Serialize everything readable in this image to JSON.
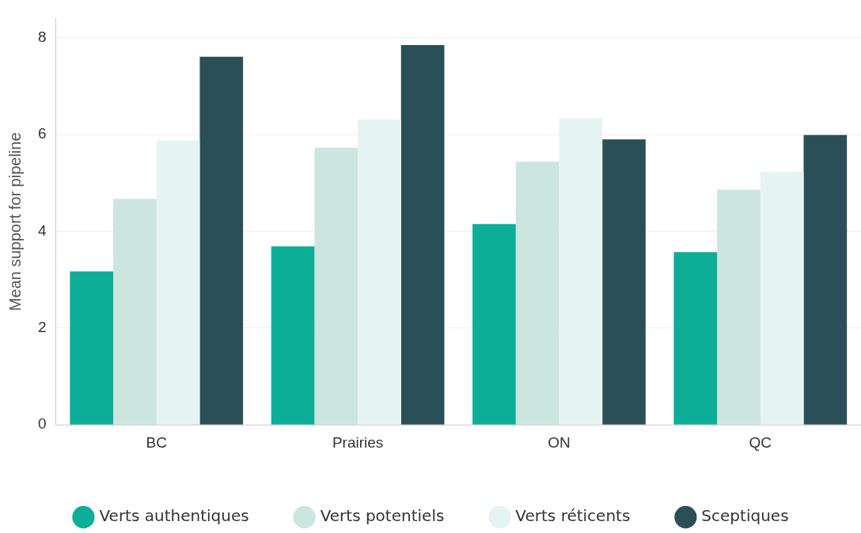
{
  "chart_data": {
    "type": "bar",
    "ylabel": "Mean support for pipeline",
    "categories": [
      "BC",
      "Prairies",
      "ON",
      "QC"
    ],
    "series": [
      {
        "name": "Verts authentiques",
        "color": "#0cae98",
        "values": [
          3.17,
          3.69,
          4.15,
          3.57
        ]
      },
      {
        "name": "Verts potentiels",
        "color": "#cce5df",
        "values": [
          4.67,
          5.73,
          5.44,
          4.86
        ]
      },
      {
        "name": "Verts réticents",
        "color": "#e6f3f3",
        "values": [
          5.88,
          6.31,
          6.34,
          5.23
        ]
      },
      {
        "name": "Sceptiques",
        "color": "#2b4f56",
        "values": [
          7.61,
          7.85,
          5.9,
          5.99
        ]
      }
    ],
    "ylim": [
      0,
      8.4
    ],
    "yticks": [
      0,
      2,
      4,
      6,
      8
    ],
    "grid": "y",
    "legend": "bottom"
  }
}
